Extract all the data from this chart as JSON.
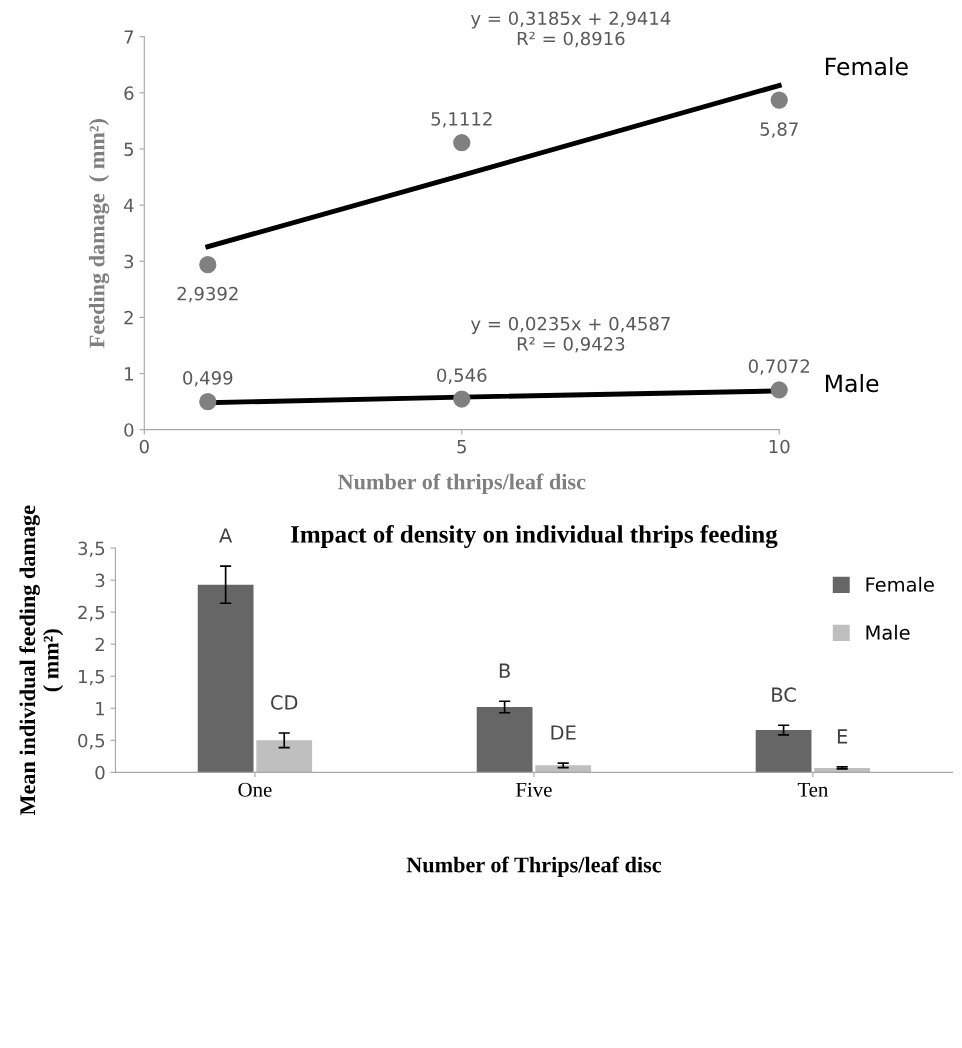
{
  "chart_data": [
    {
      "type": "scatter",
      "xlabel": "Number of thrips/leaf disc",
      "ylabel": "Feeding damage  ( mm²)",
      "x": [
        1,
        5,
        10
      ],
      "xlim": [
        0,
        10
      ],
      "xticks": [
        0,
        5,
        10
      ],
      "ylim": [
        0,
        7
      ],
      "yticks": [
        0,
        1,
        2,
        3,
        4,
        5,
        6,
        7
      ],
      "grid": false,
      "legend": false,
      "series": [
        {
          "type": "scatter",
          "marker": "circle",
          "color": "#808080",
          "values": [
            2.9392,
            5.1112,
            5.87
          ],
          "value_labels": [
            "2,9392",
            "5,1112",
            "5,87"
          ]
        },
        {
          "type": "scatter",
          "marker": "circle",
          "color": "#808080",
          "values": [
            0.499,
            0.546,
            0.7072
          ],
          "value_labels": [
            "0,499",
            "0,546",
            "0,7072"
          ]
        },
        {
          "type": "line",
          "marker": "none",
          "name": "Female",
          "color": "#000000",
          "values": [
            3.26,
            4.53,
            6.13
          ]
        },
        {
          "type": "line",
          "marker": "none",
          "name": "Male",
          "color": "#000000",
          "values": [
            0.48,
            0.58,
            0.69
          ]
        }
      ],
      "annotations": [
        "y = 0,3185x + 2,9414\nR² = 0,8916",
        "y = 0,0235x + 0,4587\nR² = 0,9423"
      ]
    },
    {
      "type": "bar",
      "title": "Impact of density on individual thrips feeding",
      "xlabel": "Number of Thrips/leaf disc",
      "ylabel": "Mean individual feeding damage\n( mm²)",
      "categories": [
        "One",
        "Five",
        "Ten"
      ],
      "ylim": [
        0,
        3.5
      ],
      "yticks": [
        0,
        {
          "value": 0.5,
          "label": "0,5"
        },
        1,
        {
          "value": 1.5,
          "label": "1,5"
        },
        2,
        {
          "value": 2.5,
          "label": "2,5"
        },
        3,
        {
          "value": 3.5,
          "label": "3,5"
        }
      ],
      "grid": false,
      "legend": "top right",
      "series": [
        {
          "name": "Female",
          "color": "#666666",
          "values": [
            2.93,
            1.02,
            0.66
          ],
          "errors": [
            0.29,
            0.09,
            0.075
          ]
        },
        {
          "name": "Male",
          "color": "#bfbfbf",
          "values": [
            0.5,
            0.11,
            0.07
          ],
          "errors": [
            0.115,
            0.035,
            0.015
          ]
        }
      ],
      "annotations": [
        "A",
        "CD",
        "B",
        "DE",
        "BC",
        "E"
      ]
    }
  ]
}
